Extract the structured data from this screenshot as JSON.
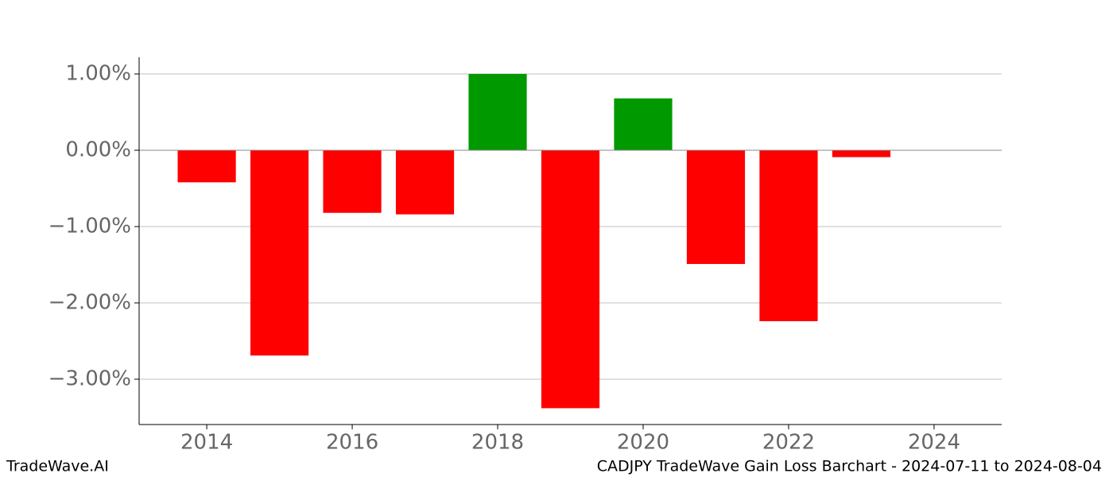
{
  "chart_data": {
    "type": "bar",
    "x": [
      2014,
      2015,
      2016,
      2017,
      2018,
      2019,
      2020,
      2021,
      2022,
      2023
    ],
    "values": [
      -0.42,
      -2.69,
      -0.82,
      -0.84,
      1.0,
      -3.38,
      0.68,
      -1.49,
      -2.24,
      -0.09
    ],
    "colors": [
      "#ff0000",
      "#ff0000",
      "#ff0000",
      "#ff0000",
      "#009900",
      "#ff0000",
      "#009900",
      "#ff0000",
      "#ff0000",
      "#ff0000"
    ],
    "xlim": [
      2013.07,
      2024.93
    ],
    "ylim": [
      -3.594,
      1.219
    ],
    "xticks": [
      2014,
      2016,
      2018,
      2020,
      2022,
      2024
    ],
    "yticks": [
      {
        "value": 1,
        "label": "1.00%"
      },
      {
        "value": 0,
        "label": "0.00%"
      },
      {
        "value": -1,
        "label": "−1.00%"
      },
      {
        "value": -2,
        "label": "−2.00%"
      },
      {
        "value": -3,
        "label": "−3.00%"
      }
    ],
    "grid": true,
    "footer_left": "TradeWave.AI",
    "footer_right": "CADJPY TradeWave Gain Loss Barchart - 2024-07-11 to 2024-08-04"
  }
}
